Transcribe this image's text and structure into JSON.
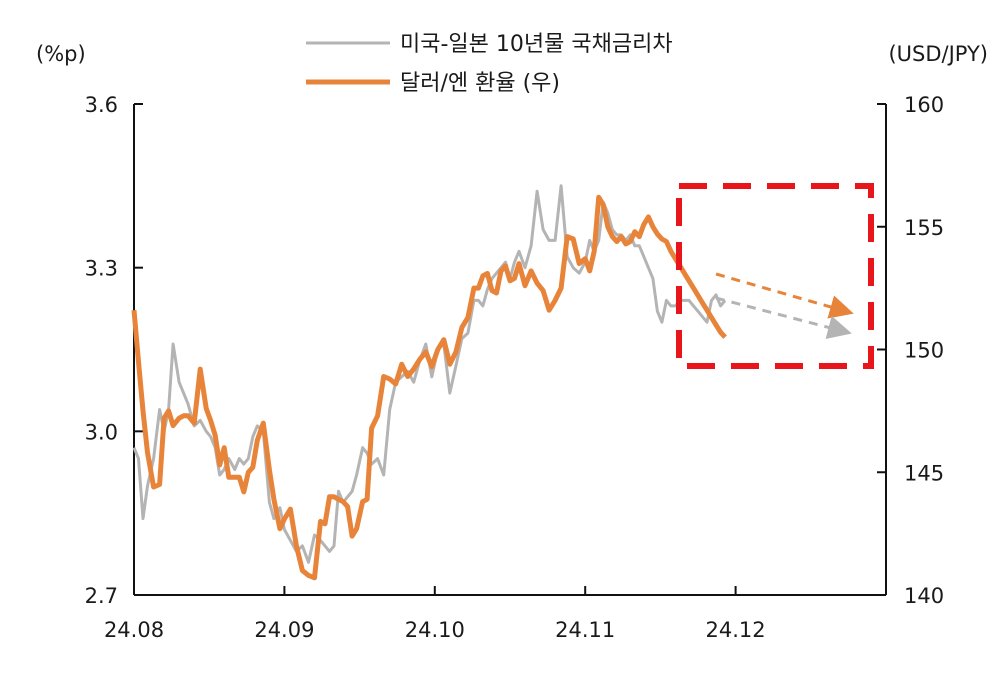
{
  "chart_data": {
    "type": "line",
    "title": "",
    "y_left_label": "(%p)",
    "y_right_label": "(USD/JPY)",
    "y_left_lim": [
      2.7,
      3.6
    ],
    "y_left_ticks": [
      "3.6",
      "3.3",
      "3.0",
      "2.7"
    ],
    "y_right_lim": [
      140,
      160
    ],
    "y_right_ticks": [
      "160",
      "155",
      "150",
      "145",
      "140"
    ],
    "x_lim": [
      0,
      5
    ],
    "x_tick_labels": [
      "24.08",
      "24.09",
      "24.10",
      "24.11",
      "24.12"
    ],
    "grid": false,
    "legend_position": "top-center",
    "series": [
      {
        "name": "미국-일본 10년물 국채금리차",
        "axis": "left",
        "color": "#b4b4b4",
        "x": [
          0.0,
          0.03,
          0.06,
          0.09,
          0.13,
          0.17,
          0.2,
          0.23,
          0.26,
          0.3,
          0.33,
          0.36,
          0.4,
          0.44,
          0.48,
          0.51,
          0.54,
          0.57,
          0.6,
          0.63,
          0.67,
          0.7,
          0.73,
          0.76,
          0.79,
          0.82,
          0.86,
          0.9,
          0.93,
          0.97,
          1.0,
          1.04,
          1.08,
          1.12,
          1.16,
          1.2,
          1.24,
          1.27,
          1.3,
          1.33,
          1.36,
          1.39,
          1.42,
          1.45,
          1.48,
          1.52,
          1.55,
          1.58,
          1.62,
          1.66,
          1.7,
          1.74,
          1.78,
          1.82,
          1.86,
          1.9,
          1.94,
          1.98,
          2.02,
          2.06,
          2.1,
          2.14,
          2.18,
          2.22,
          2.26,
          2.29,
          2.32,
          2.35,
          2.38,
          2.41,
          2.44,
          2.47,
          2.5,
          2.53,
          2.56,
          2.6,
          2.64,
          2.68,
          2.72,
          2.76,
          2.8,
          2.84,
          2.88,
          2.92,
          2.96,
          3.0,
          3.03,
          3.06,
          3.09,
          3.12,
          3.15,
          3.18,
          3.21,
          3.24,
          3.27,
          3.3,
          3.33,
          3.36,
          3.39,
          3.42,
          3.45,
          3.48,
          3.51,
          3.54,
          3.57,
          3.6,
          3.63,
          3.66,
          3.69,
          3.72,
          3.75,
          3.78,
          3.81,
          3.84,
          3.87,
          3.9,
          3.93
        ],
        "y": [
          2.97,
          2.95,
          2.84,
          2.9,
          2.95,
          3.04,
          3.0,
          3.04,
          3.16,
          3.09,
          3.07,
          3.05,
          3.01,
          3.02,
          3.0,
          2.99,
          2.97,
          2.92,
          2.93,
          2.95,
          2.93,
          2.95,
          2.94,
          2.95,
          2.99,
          3.01,
          3.0,
          2.87,
          2.84,
          2.86,
          2.82,
          2.8,
          2.78,
          2.79,
          2.76,
          2.81,
          2.8,
          2.79,
          2.78,
          2.79,
          2.89,
          2.87,
          2.88,
          2.89,
          2.92,
          2.97,
          2.96,
          2.94,
          2.95,
          2.92,
          3.04,
          3.09,
          3.1,
          3.11,
          3.09,
          3.13,
          3.16,
          3.1,
          3.15,
          3.16,
          3.07,
          3.12,
          3.17,
          3.18,
          3.24,
          3.24,
          3.23,
          3.26,
          3.28,
          3.29,
          3.3,
          3.31,
          3.28,
          3.31,
          3.33,
          3.3,
          3.34,
          3.44,
          3.37,
          3.35,
          3.35,
          3.45,
          3.32,
          3.3,
          3.29,
          3.31,
          3.35,
          3.33,
          3.35,
          3.42,
          3.4,
          3.37,
          3.36,
          3.36,
          3.35,
          3.36,
          3.34,
          3.34,
          3.32,
          3.3,
          3.28,
          3.22,
          3.2,
          3.24,
          3.23,
          3.23,
          3.24,
          3.24,
          3.24,
          3.23,
          3.22,
          3.21,
          3.2,
          3.24,
          3.25,
          3.23,
          3.24
        ]
      },
      {
        "name": "달러/엔 환율 (우)",
        "axis": "right",
        "color": "#e8843a",
        "x": [
          0.0,
          0.03,
          0.06,
          0.09,
          0.13,
          0.17,
          0.2,
          0.23,
          0.26,
          0.3,
          0.33,
          0.36,
          0.4,
          0.44,
          0.48,
          0.51,
          0.54,
          0.57,
          0.6,
          0.63,
          0.67,
          0.7,
          0.73,
          0.76,
          0.79,
          0.82,
          0.86,
          0.9,
          0.93,
          0.97,
          1.0,
          1.04,
          1.08,
          1.12,
          1.16,
          1.2,
          1.24,
          1.27,
          1.3,
          1.33,
          1.36,
          1.39,
          1.42,
          1.45,
          1.48,
          1.52,
          1.55,
          1.58,
          1.62,
          1.66,
          1.7,
          1.74,
          1.78,
          1.82,
          1.86,
          1.9,
          1.94,
          1.98,
          2.02,
          2.06,
          2.1,
          2.14,
          2.18,
          2.22,
          2.26,
          2.29,
          2.32,
          2.35,
          2.38,
          2.41,
          2.44,
          2.47,
          2.5,
          2.53,
          2.56,
          2.6,
          2.64,
          2.68,
          2.72,
          2.76,
          2.8,
          2.84,
          2.88,
          2.92,
          2.96,
          3.0,
          3.03,
          3.06,
          3.09,
          3.12,
          3.15,
          3.18,
          3.21,
          3.24,
          3.27,
          3.3,
          3.33,
          3.36,
          3.39,
          3.42,
          3.45,
          3.48,
          3.51,
          3.54,
          3.57,
          3.6,
          3.63,
          3.66,
          3.69,
          3.72,
          3.75,
          3.78,
          3.81,
          3.84,
          3.87,
          3.9,
          3.93
        ],
        "y": [
          151.6,
          149.5,
          147.5,
          145.8,
          144.4,
          144.5,
          147.2,
          147.5,
          146.9,
          147.2,
          147.3,
          147.3,
          147.0,
          149.2,
          147.6,
          147.1,
          146.5,
          145.3,
          146.0,
          144.8,
          144.8,
          144.8,
          144.2,
          145.0,
          145.2,
          146.3,
          147.0,
          145.1,
          143.9,
          142.7,
          143.1,
          143.5,
          142.0,
          141.0,
          140.8,
          140.7,
          143.0,
          142.9,
          144.0,
          144.0,
          143.9,
          143.8,
          143.6,
          142.4,
          142.7,
          143.8,
          143.9,
          146.8,
          147.3,
          148.9,
          148.8,
          148.6,
          149.4,
          148.9,
          149.2,
          149.6,
          149.9,
          149.3,
          150.0,
          150.4,
          149.4,
          149.9,
          150.9,
          151.3,
          152.5,
          152.5,
          153.0,
          153.1,
          152.4,
          152.3,
          153.2,
          153.4,
          152.8,
          152.9,
          153.5,
          152.6,
          153.2,
          152.7,
          152.4,
          151.6,
          152.0,
          152.5,
          154.6,
          154.5,
          153.5,
          153.7,
          153.2,
          154.0,
          156.2,
          155.9,
          155.0,
          154.6,
          154.4,
          154.6,
          154.3,
          154.4,
          154.8,
          154.6,
          155.1,
          155.4,
          155.0,
          154.7,
          154.5,
          154.4,
          154.0,
          153.7,
          153.4,
          153.1,
          152.8,
          152.5,
          152.2,
          151.9,
          151.6,
          151.3,
          151.0,
          150.7,
          150.5
        ]
      }
    ]
  },
  "annotations": {
    "highlight_box_color": "#e8161b",
    "forecast_arrows": [
      {
        "series": "달러/엔 환율 (우)",
        "color": "#e8843a",
        "style": "dashed"
      },
      {
        "series": "미국-일본 10년물 국채금리차",
        "color": "#b4b4b4",
        "style": "dashed"
      }
    ]
  }
}
